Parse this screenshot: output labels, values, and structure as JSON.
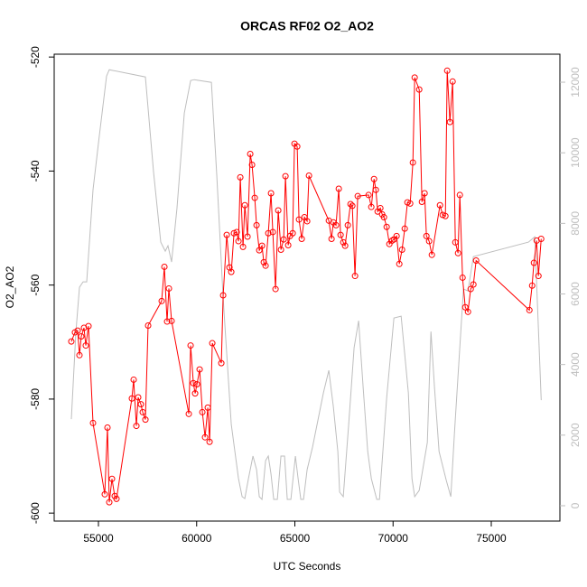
{
  "chart_data": {
    "type": "line",
    "title": "ORCAS RF02 O2_AO2",
    "xlabel": "UTC Seconds",
    "ylabel": "O2_AO2",
    "xlim": [
      52747,
      78494
    ],
    "ylim": [
      -601.4,
      -519.5
    ],
    "y2lim": [
      -435,
      12794
    ],
    "xticks": [
      55000,
      60000,
      65000,
      70000,
      75000
    ],
    "yticks": [
      -600,
      -580,
      -560,
      -540,
      -520
    ],
    "y2ticks": [
      0,
      2000,
      4000,
      6000,
      8000,
      10000,
      12000
    ],
    "series": [
      {
        "color": "#bebebe",
        "axis": "y2",
        "x": [
          53620,
          53850,
          54034,
          54218,
          54402,
          54724,
          55046,
          55414,
          55552,
          57392,
          57806,
          58174,
          58404,
          58542,
          58726,
          59002,
          59370,
          59692,
          59876,
          60750,
          61026,
          61348,
          61762,
          62130,
          62314,
          62452,
          62636,
          62866,
          63050,
          63188,
          63326,
          63510,
          63648,
          63786,
          63924,
          64108,
          64292,
          64476,
          64614,
          64798,
          65028,
          65166,
          65304,
          65442,
          65626,
          65902,
          66178,
          66454,
          66730,
          66960,
          67190,
          67282,
          67466,
          67742,
          68018,
          68248,
          68478,
          68708,
          68892,
          69168,
          69306,
          69674,
          70042,
          70410,
          70778,
          70962,
          71100,
          71330,
          71744,
          71928,
          72112,
          72342,
          72710,
          72940,
          73124,
          73584,
          73814,
          74090,
          76896,
          77218,
          77540
        ],
        "values": [
          2455,
          4910,
          6189,
          6343,
          6343,
          8951,
          10486,
          12174,
          12353,
          12148,
          9463,
          7468,
          7212,
          7366,
          6905,
          8440,
          11125,
          12046,
          12072,
          11995,
          9335,
          5882,
          2302,
          767,
          256,
          205,
          767,
          1407,
          1023,
          256,
          179,
          1279,
          1407,
          895,
          179,
          179,
          1407,
          1407,
          179,
          179,
          1407,
          767,
          179,
          179,
          1023,
          1662,
          2430,
          3197,
          3836,
          2813,
          1535,
          384,
          256,
          2302,
          4476,
          5243,
          3325,
          1535,
          767,
          179,
          179,
          3069,
          5320,
          5371,
          3197,
          767,
          256,
          435,
          1790,
          4936,
          3325,
          1535,
          716,
          256,
          2046,
          6138,
          6087,
          7059,
          7468,
          7621,
          2992
        ]
      },
      {
        "color": "#ff0000",
        "marker": "circle",
        "x": [
          53620,
          53804,
          53942,
          54034,
          54126,
          54264,
          54356,
          54494,
          54724,
          55322,
          55460,
          55552,
          55690,
          55828,
          55920,
          56702,
          56794,
          56932,
          57024,
          57162,
          57254,
          57392,
          57530,
          58220,
          58358,
          58496,
          58588,
          58726,
          59600,
          59692,
          59830,
          59922,
          60014,
          60152,
          60290,
          60428,
          60566,
          60658,
          60796,
          61256,
          61348,
          61532,
          61670,
          61762,
          61900,
          62038,
          62130,
          62222,
          62360,
          62452,
          62590,
          62728,
          62820,
          62958,
          63050,
          63188,
          63326,
          63418,
          63510,
          63648,
          63786,
          63878,
          64016,
          64154,
          64292,
          64430,
          64522,
          64660,
          64752,
          64890,
          64982,
          65120,
          65212,
          65350,
          65488,
          65626,
          65718,
          66730,
          66868,
          66960,
          67098,
          67236,
          67328,
          67466,
          67558,
          67696,
          67834,
          67926,
          68064,
          68202,
          68754,
          68892,
          69030,
          69122,
          69214,
          69352,
          69444,
          69536,
          69674,
          69812,
          69950,
          70042,
          70180,
          70318,
          70456,
          70594,
          70732,
          70870,
          71008,
          71100,
          71330,
          71468,
          71606,
          71698,
          71836,
          71974,
          72388,
          72526,
          72664,
          72756,
          72894,
          73032,
          73170,
          73308,
          73400,
          73538,
          73676,
          73814,
          73952,
          74090,
          74228,
          76942,
          77080,
          77172,
          77310,
          77402,
          77540
        ],
        "values": [
          -569.9,
          -568.3,
          -568.0,
          -572.3,
          -569.0,
          -567.5,
          -570.6,
          -567.2,
          -584.2,
          -596.7,
          -585.0,
          -598.1,
          -594.0,
          -597.0,
          -597.5,
          -579.9,
          -576.6,
          -584.7,
          -579.7,
          -580.9,
          -582.3,
          -583.6,
          -567.1,
          -562.8,
          -556.8,
          -566.4,
          -560.6,
          -566.3,
          -582.6,
          -570.6,
          -577.2,
          -579.0,
          -577.4,
          -574.8,
          -582.3,
          -586.7,
          -581.5,
          -587.5,
          -570.2,
          -573.7,
          -561.8,
          -551.2,
          -556.9,
          -557.7,
          -550.9,
          -550.7,
          -552.3,
          -541.1,
          -553.3,
          -546.0,
          -551.5,
          -537.0,
          -538.9,
          -544.7,
          -549.5,
          -553.9,
          -553.1,
          -556.0,
          -556.6,
          -550.9,
          -543.9,
          -550.7,
          -560.7,
          -546.9,
          -553.8,
          -552.0,
          -540.9,
          -553.0,
          -551.4,
          -550.9,
          -535.2,
          -535.7,
          -548.5,
          -551.9,
          -548.1,
          -548.8,
          -540.8,
          -548.7,
          -551.9,
          -549.0,
          -549.5,
          -543.1,
          -551.2,
          -552.5,
          -553.1,
          -549.5,
          -545.8,
          -546.1,
          -558.4,
          -544.4,
          -544.2,
          -546.3,
          -541.4,
          -543.3,
          -547.1,
          -546.5,
          -547.6,
          -548.1,
          -549.8,
          -552.8,
          -552.2,
          -552.0,
          -551.4,
          -556.3,
          -553.8,
          -550.1,
          -545.5,
          -545.7,
          -538.5,
          -523.6,
          -525.7,
          -545.4,
          -543.9,
          -551.4,
          -552.3,
          -554.7,
          -546.0,
          -547.7,
          -547.9,
          -522.4,
          -531.4,
          -524.3,
          -552.5,
          -554.4,
          -544.2,
          -558.7,
          -563.9,
          -564.7,
          -560.7,
          -559.9,
          -555.7,
          -564.4,
          -560.1,
          -556.1,
          -552.2,
          -558.4,
          -551.9
        ]
      }
    ]
  }
}
